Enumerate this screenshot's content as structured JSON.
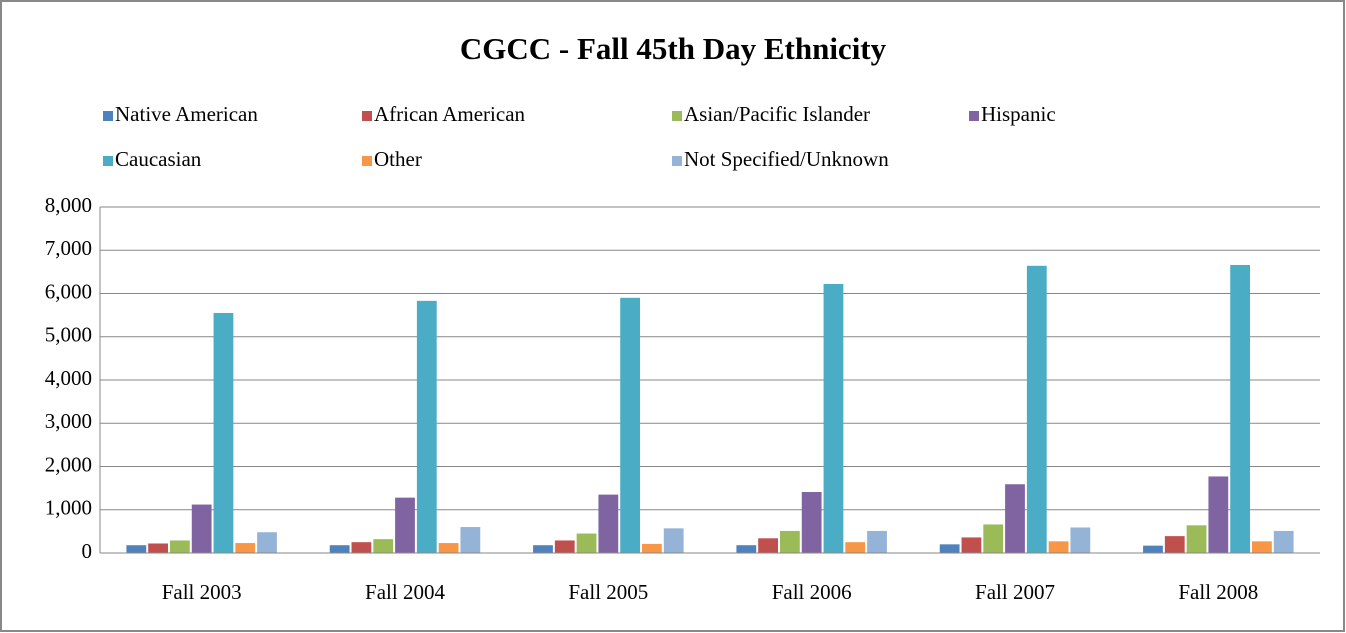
{
  "chart_data": {
    "type": "bar",
    "title": "CGCC - Fall 45th Day Ethnicity",
    "categories": [
      "Fall 2003",
      "Fall 2004",
      "Fall 2005",
      "Fall 2006",
      "Fall 2007",
      "Fall 2008"
    ],
    "series": [
      {
        "name": "Native American",
        "color": "#4f81bd",
        "values": [
          180,
          180,
          180,
          180,
          200,
          170
        ]
      },
      {
        "name": "African American",
        "color": "#c0504d",
        "values": [
          220,
          250,
          290,
          340,
          360,
          390
        ]
      },
      {
        "name": "Asian/Pacific Islander",
        "color": "#9bbb59",
        "values": [
          290,
          320,
          450,
          510,
          660,
          640
        ]
      },
      {
        "name": "Hispanic",
        "color": "#8064a2",
        "values": [
          1120,
          1280,
          1350,
          1410,
          1590,
          1770
        ]
      },
      {
        "name": "Caucasian",
        "color": "#4bacc6",
        "values": [
          5550,
          5830,
          5900,
          6220,
          6640,
          6660
        ]
      },
      {
        "name": "Other",
        "color": "#f79646",
        "values": [
          230,
          230,
          210,
          250,
          270,
          270
        ]
      },
      {
        "name": "Not Specified/Unknown",
        "color": "#95b3d7",
        "values": [
          480,
          600,
          570,
          510,
          590,
          510
        ]
      }
    ],
    "ylim": [
      0,
      8000
    ],
    "yticks": [
      0,
      {
        "value": 1000,
        "label": "1,000"
      },
      {
        "value": 2000,
        "label": "2,000"
      },
      {
        "value": 3000,
        "label": "3,000"
      },
      {
        "value": 4000,
        "label": "4,000"
      },
      {
        "value": 5000,
        "label": "5,000"
      },
      {
        "value": 6000,
        "label": "6,000"
      },
      {
        "value": 7000,
        "label": "7,000"
      },
      {
        "value": 8000,
        "label": "8,000"
      }
    ],
    "grid": true,
    "legend": "top"
  }
}
